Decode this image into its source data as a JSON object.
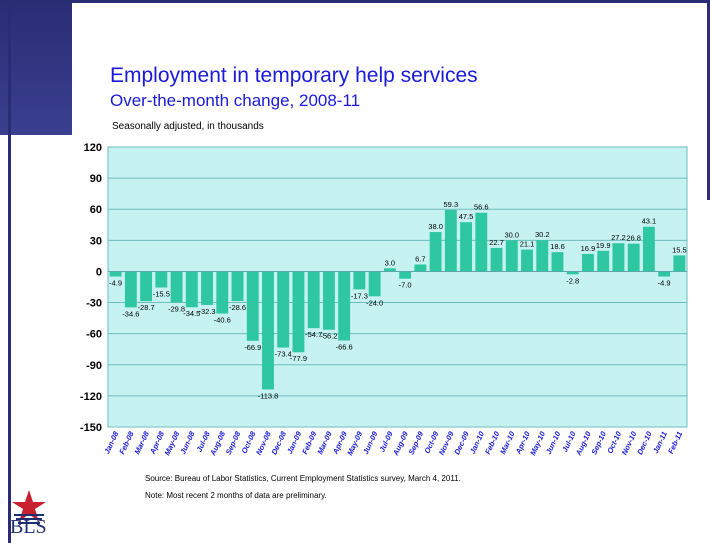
{
  "header": {
    "title": "Employment in temporary help services",
    "subtitle": "Over-the-month change, 2008-11",
    "note": "Seasonally adjusted, in thousands"
  },
  "footer": {
    "source": "Source:  Bureau of Labor Statistics, Current Employment Statistics survey, March 4, 2011.",
    "note": "Note:  Most recent 2 months of data are preliminary."
  },
  "logo": {
    "text": "BLS",
    "icon": "star-icon"
  },
  "colors": {
    "bar": "#2fc7a2",
    "plot_bg": "#c6f3f2",
    "title": "#1a1ad8",
    "band": "#2a2d74"
  },
  "chart_data": {
    "type": "bar",
    "ylim": [
      -150,
      120
    ],
    "yticks": [
      120,
      90,
      60,
      30,
      0,
      -30,
      -60,
      -90,
      -120,
      -150
    ],
    "grid": true,
    "categories": [
      "Jan-08",
      "Feb-08",
      "Mar-08",
      "Apr-08",
      "May-08",
      "Jun-08",
      "Jul-08",
      "Aug-08",
      "Sep-08",
      "Oct-08",
      "Nov-08",
      "Dec-08",
      "Jan-09",
      "Feb-09",
      "Mar-09",
      "Apr-09",
      "May-09",
      "Jun-09",
      "Jul-09",
      "Aug-09",
      "Sep-09",
      "Oct-09",
      "Nov-09",
      "Dec-09",
      "Jan-10",
      "Feb-10",
      "Mar-10",
      "Apr-10",
      "May-10",
      "Jun-10",
      "Jul-10",
      "Aug-10",
      "Sep-10",
      "Oct-10",
      "Nov-10",
      "Dec-10",
      "Jan-11",
      "Feb-11"
    ],
    "values": [
      -4.9,
      -34.6,
      -28.7,
      -15.5,
      -29.8,
      -34.5,
      -32.3,
      -40.6,
      -28.6,
      -66.9,
      -113.8,
      -73.4,
      -77.9,
      -54.7,
      -56.2,
      -66.6,
      -17.3,
      -24.0,
      3.0,
      -7.0,
      6.7,
      38.0,
      59.3,
      47.5,
      56.6,
      22.7,
      30.0,
      21.1,
      30.2,
      18.6,
      -2.8,
      16.9,
      19.9,
      27.2,
      26.8,
      43.1,
      -4.9,
      15.5
    ],
    "labels": [
      "-4.9",
      "-34.6",
      "-28.7",
      "-15.5",
      "-29.8",
      "-34.5",
      "-32.3",
      "-40.6",
      "-28.6",
      "-66.9",
      "-113.8",
      "-73.4",
      "-77.9",
      "-54.7",
      "-56.2",
      "-66.6",
      "-17.3",
      "-24.0",
      "3.0",
      "-7.0",
      "6.7",
      "38.0",
      "59.3",
      "47.5",
      "56.6",
      "22.7",
      "30.0",
      "21.1",
      "30.2",
      "18.6",
      "-2.8",
      "16.9",
      "19.9",
      "27.2",
      "26.8",
      "43.1",
      "-4.9",
      "15.5"
    ]
  }
}
